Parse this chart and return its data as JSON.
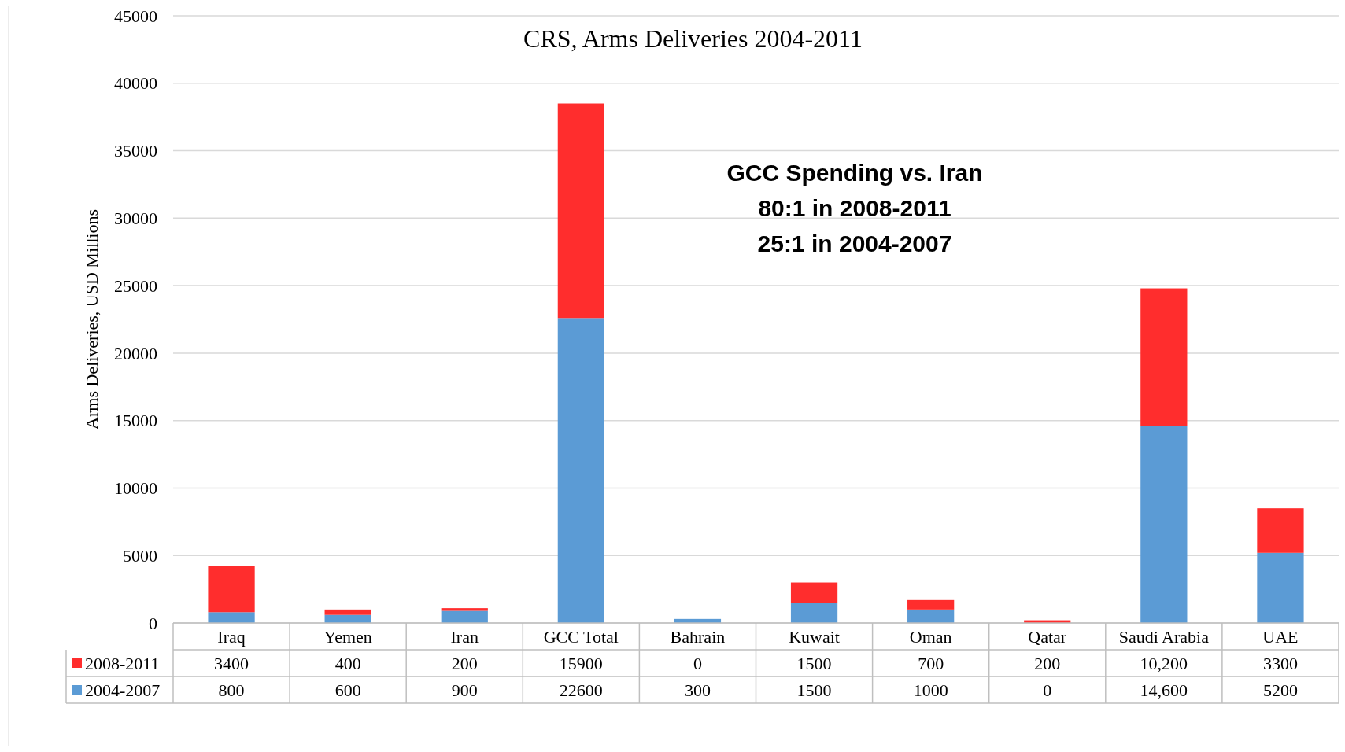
{
  "chart_data": {
    "type": "bar",
    "title": "CRS, Arms Deliveries 2004-2011",
    "ylabel": "Arms Deliveries, USD Millions",
    "categories": [
      "Iraq",
      "Yemen",
      "Iran",
      "GCC Total",
      "Bahrain",
      "Kuwait",
      "Oman",
      "Qatar",
      "Saudi Arabia",
      "UAE"
    ],
    "stacked": true,
    "series": [
      {
        "name": "2004-2007",
        "color": "#5b9bd5",
        "values": [
          800,
          600,
          900,
          22600,
          300,
          1500,
          1000,
          0,
          14600,
          5200
        ],
        "value_labels": [
          "800",
          "600",
          "900",
          "22600",
          "300",
          "1500",
          "1000",
          "0",
          "14,600",
          "5200"
        ]
      },
      {
        "name": "2008-2011",
        "color": "#ff2d2d",
        "values": [
          3400,
          400,
          200,
          15900,
          0,
          1500,
          700,
          200,
          10200,
          3300
        ],
        "value_labels": [
          "3400",
          "400",
          "200",
          "15900",
          "0",
          "1500",
          "700",
          "200",
          "10,200",
          "3300"
        ]
      }
    ],
    "ylim": [
      0,
      45000
    ],
    "yticks": [
      0,
      5000,
      10000,
      15000,
      20000,
      25000,
      30000,
      35000,
      40000,
      45000
    ],
    "grid": "y",
    "legend": "bottom",
    "annotations": [
      "GCC Spending vs. Iran",
      "80:1 in 2008-2011",
      "25:1 in 2004-2007"
    ]
  }
}
